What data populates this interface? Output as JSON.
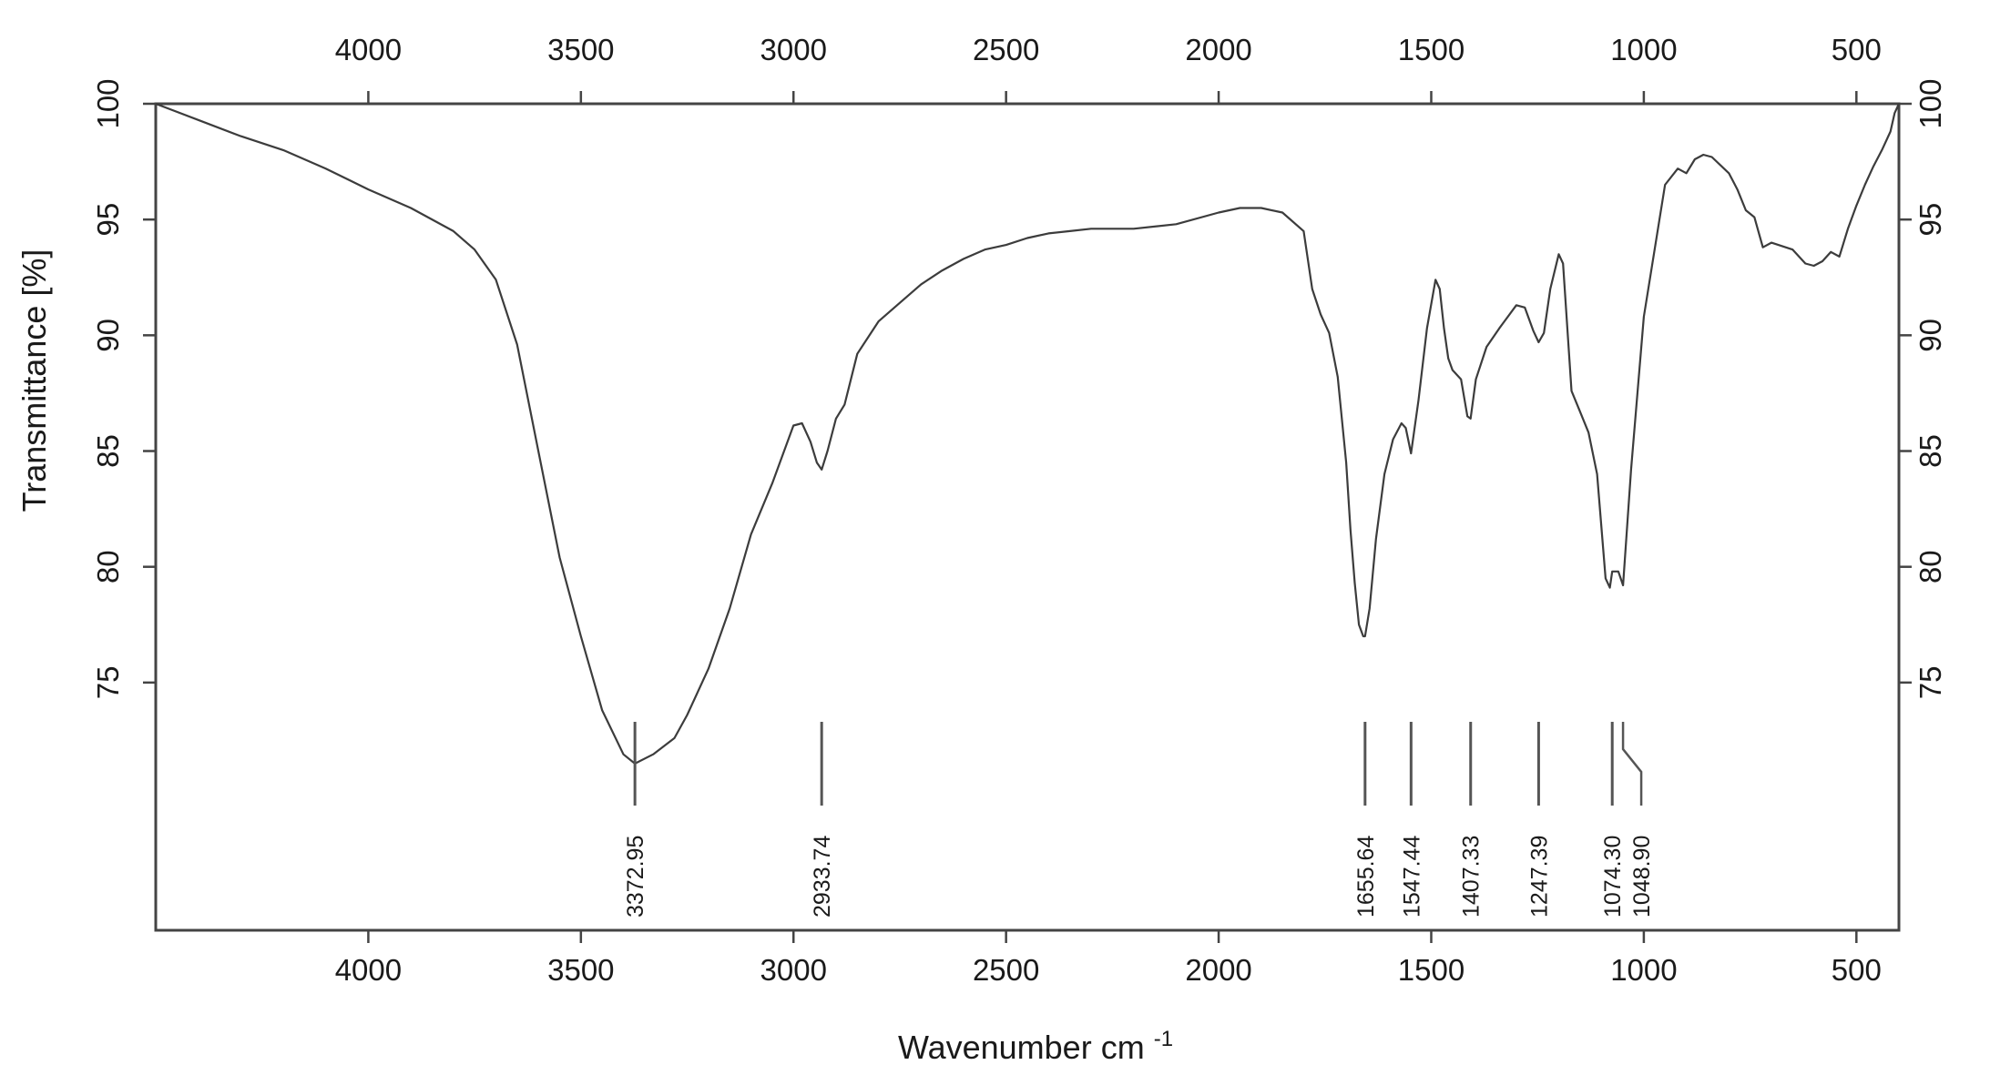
{
  "chart_data": {
    "type": "line",
    "title": "",
    "xlabel": "Wavenumber cm",
    "xlabel_superscript": "-1",
    "ylabel": "Transmittance [%]",
    "xlim": [
      4500,
      400
    ],
    "ylim": [
      64.3,
      100
    ],
    "x_reversed": true,
    "grid": false,
    "legend": "none",
    "line_color": "#3c3c3c",
    "frame_color": "#444444",
    "x_ticks": [
      4000,
      3500,
      3000,
      2500,
      2000,
      1500,
      1000,
      500
    ],
    "x_tick_labels": [
      "4000",
      "3500",
      "3000",
      "2500",
      "2000",
      "1500",
      "1000",
      "500"
    ],
    "y_ticks": [
      100,
      95,
      90,
      85,
      80,
      75
    ],
    "y_tick_labels": [
      "100",
      "95",
      "90",
      "85",
      "80",
      "75"
    ],
    "series": [
      {
        "x": [
          4500,
          4400,
          4300,
          4200,
          4100,
          4000,
          3900,
          3800,
          3750,
          3700,
          3650,
          3600,
          3550,
          3500,
          3450,
          3400,
          3372.95,
          3330,
          3280,
          3250,
          3200,
          3150,
          3100,
          3050,
          3000,
          2980,
          2960,
          2945,
          2933.74,
          2920,
          2900,
          2880,
          2850,
          2800,
          2750,
          2700,
          2650,
          2600,
          2550,
          2500,
          2450,
          2400,
          2350,
          2300,
          2200,
          2100,
          2000,
          1950,
          1900,
          1850,
          1800,
          1780,
          1760,
          1740,
          1720,
          1700,
          1690,
          1680,
          1670,
          1660,
          1655.64,
          1645,
          1630,
          1610,
          1590,
          1570,
          1560,
          1547.44,
          1530,
          1510,
          1490,
          1480,
          1470,
          1460,
          1450,
          1430,
          1415,
          1407.33,
          1395,
          1370,
          1340,
          1300,
          1280,
          1260,
          1247.39,
          1235,
          1220,
          1200,
          1190,
          1170,
          1150,
          1130,
          1110,
          1090,
          1080,
          1074.3,
          1060,
          1048.9,
          1030,
          1000,
          950,
          920,
          900,
          880,
          860,
          840,
          800,
          780,
          760,
          740,
          720,
          700,
          650,
          620,
          600,
          580,
          560,
          540,
          520,
          500,
          480,
          460,
          440,
          420,
          410,
          400
        ],
        "y": [
          100,
          99.3,
          98.6,
          98.0,
          97.2,
          96.3,
          95.5,
          94.5,
          93.7,
          92.4,
          89.6,
          85.0,
          80.4,
          77.0,
          73.8,
          71.9,
          71.5,
          71.9,
          72.6,
          73.6,
          75.6,
          78.2,
          81.4,
          83.6,
          86.1,
          86.2,
          85.4,
          84.5,
          84.2,
          85.0,
          86.4,
          87.0,
          89.2,
          90.6,
          91.4,
          92.2,
          92.8,
          93.3,
          93.7,
          93.9,
          94.2,
          94.4,
          94.5,
          94.6,
          94.6,
          94.8,
          95.3,
          95.5,
          95.5,
          95.3,
          94.5,
          92.0,
          90.9,
          90.1,
          88.2,
          84.5,
          81.6,
          79.3,
          77.5,
          77.0,
          77.0,
          78.2,
          81.2,
          84.0,
          85.5,
          86.2,
          86.0,
          84.9,
          87.2,
          90.3,
          92.4,
          92.0,
          90.3,
          89.0,
          88.5,
          88.1,
          86.5,
          86.4,
          88.1,
          89.5,
          90.3,
          91.3,
          91.2,
          90.2,
          89.7,
          90.1,
          92.0,
          93.5,
          93.1,
          87.6,
          86.7,
          85.8,
          84.0,
          79.5,
          79.1,
          79.8,
          79.8,
          79.2,
          84.2,
          90.8,
          96.5,
          97.2,
          97.0,
          97.6,
          97.8,
          97.7,
          97.0,
          96.3,
          95.4,
          95.1,
          93.8,
          94.0,
          93.7,
          93.1,
          93.0,
          93.2,
          93.6,
          93.4,
          94.6,
          95.6,
          96.5,
          97.3,
          98.0,
          98.8,
          99.6,
          100
        ]
      }
    ],
    "peaks": [
      {
        "x": 3372.95,
        "label": "3372.95"
      },
      {
        "x": 2933.74,
        "label": "2933.74"
      },
      {
        "x": 1655.64,
        "label": "1655.64"
      },
      {
        "x": 1547.44,
        "label": "1547.44"
      },
      {
        "x": 1407.33,
        "label": "1407.33"
      },
      {
        "x": 1247.39,
        "label": "1247.39"
      },
      {
        "x": 1074.3,
        "label": "1074.30"
      },
      {
        "x": 1048.9,
        "label": "1048.90"
      }
    ]
  }
}
